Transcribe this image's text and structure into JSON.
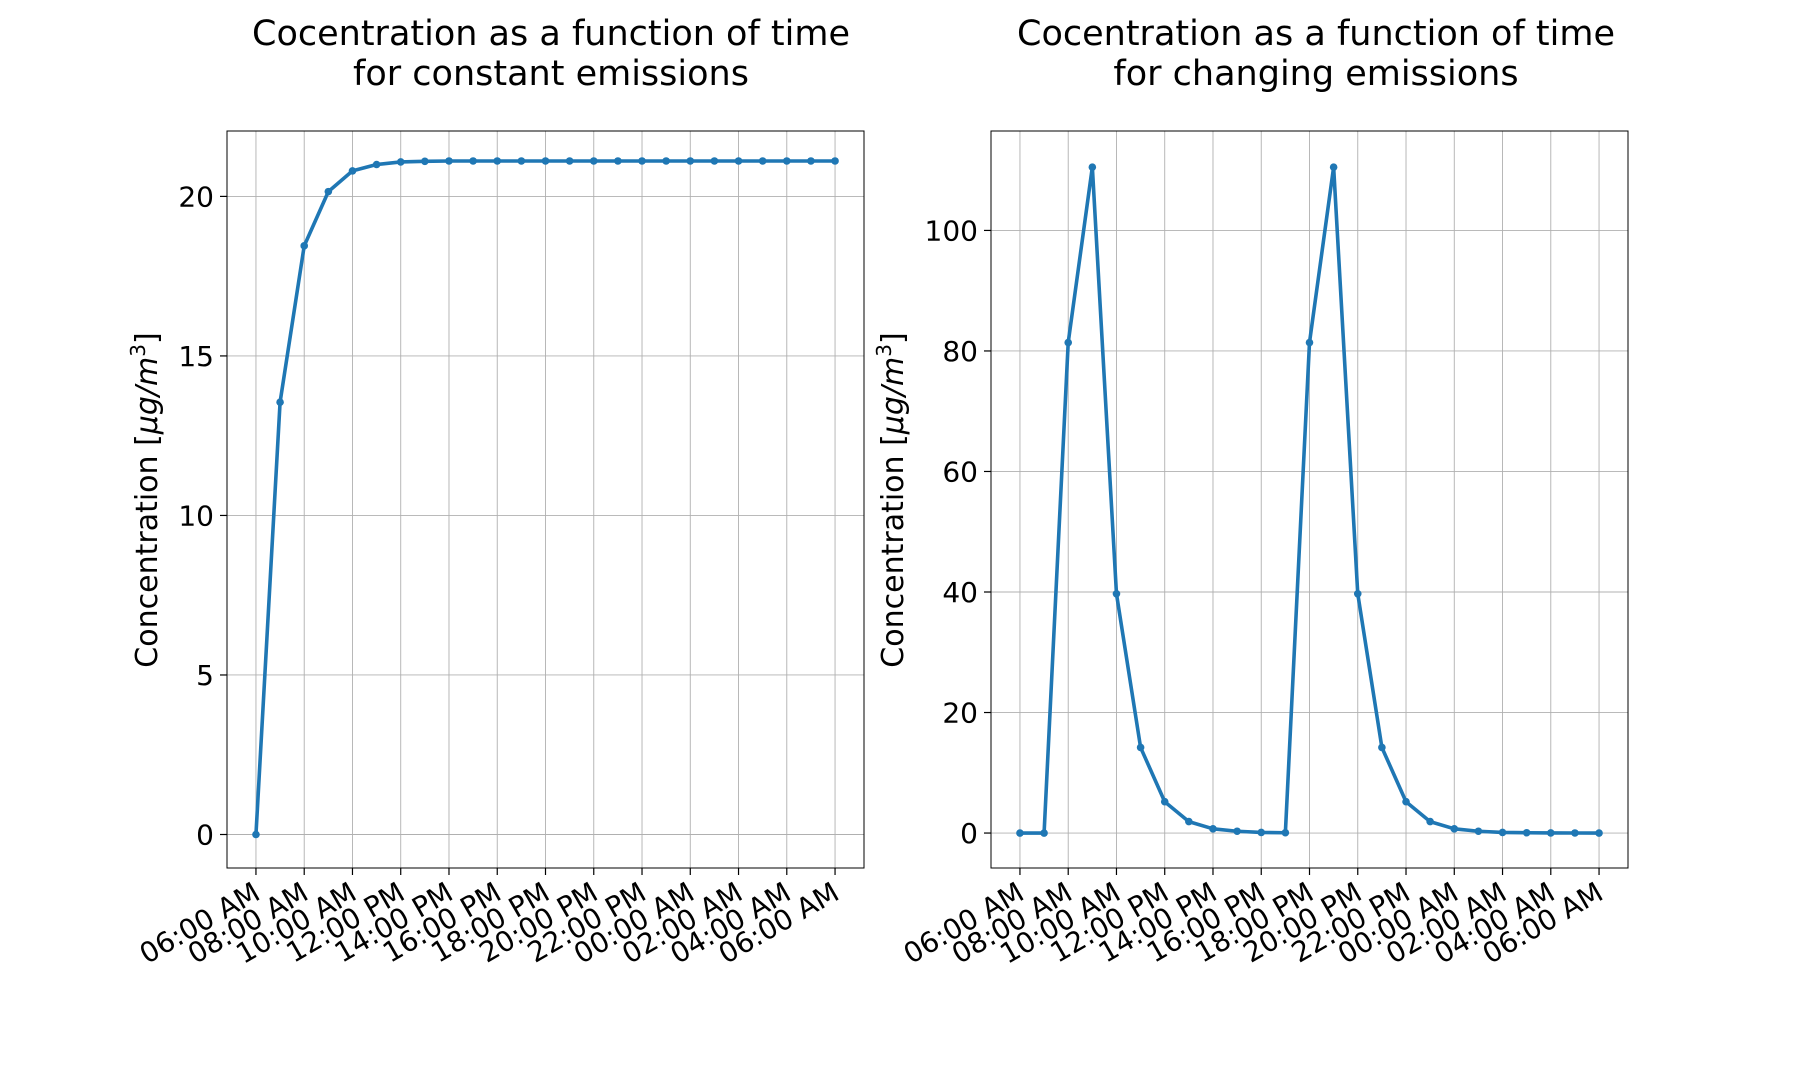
{
  "chart_data": [
    {
      "type": "line",
      "title_line1": "Cocentration as a function of time",
      "title_line2": "for constant emissions",
      "ylabel_prefix": "Concentration [",
      "ylabel_math": "μg/m",
      "ylabel_sup": "3",
      "ylabel_suffix": "]",
      "ylim": [
        -1.05,
        22.05
      ],
      "yticks": [
        0,
        5,
        10,
        15,
        20
      ],
      "ytick_labels": [
        "0",
        "5",
        "10",
        "15",
        "20"
      ],
      "xlim": [
        -1.2,
        25.2
      ],
      "xticks": [
        0,
        2,
        4,
        6,
        8,
        10,
        12,
        14,
        16,
        18,
        20,
        22,
        24
      ],
      "xtick_labels": [
        "06:00 AM",
        "08:00 AM",
        "10:00 AM",
        "12:00 PM",
        "14:00 PM",
        "16:00 PM",
        "18:00 PM",
        "20:00 PM",
        "22:00 PM",
        "00:00 AM",
        "02:00 AM",
        "04:00 AM",
        "06:00 AM"
      ],
      "grid": true,
      "color": "#1f77b4",
      "x": [
        0,
        1,
        2,
        3,
        4,
        5,
        6,
        7,
        8,
        9,
        10,
        11,
        12,
        13,
        14,
        15,
        16,
        17,
        18,
        19,
        20,
        21,
        22,
        23,
        24
      ],
      "values": [
        0,
        13.55,
        18.45,
        20.15,
        20.8,
        21.0,
        21.08,
        21.1,
        21.11,
        21.11,
        21.11,
        21.11,
        21.11,
        21.11,
        21.11,
        21.11,
        21.11,
        21.11,
        21.11,
        21.11,
        21.11,
        21.11,
        21.11,
        21.11,
        21.11
      ]
    },
    {
      "type": "line",
      "title_line1": "Cocentration as a function of time",
      "title_line2": "for changing emissions",
      "ylabel_prefix": "Concentration [",
      "ylabel_math": "μg/m",
      "ylabel_sup": "3",
      "ylabel_suffix": "]",
      "ylim": [
        -5.8,
        116.5
      ],
      "yticks": [
        0,
        20,
        40,
        60,
        80,
        100
      ],
      "ytick_labels": [
        "0",
        "20",
        "40",
        "60",
        "80",
        "100"
      ],
      "xlim": [
        -1.2,
        25.2
      ],
      "xticks": [
        0,
        2,
        4,
        6,
        8,
        10,
        12,
        14,
        16,
        18,
        20,
        22,
        24
      ],
      "xtick_labels": [
        "06:00 AM",
        "08:00 AM",
        "10:00 AM",
        "12:00 PM",
        "14:00 PM",
        "16:00 PM",
        "18:00 PM",
        "20:00 PM",
        "22:00 PM",
        "00:00 AM",
        "02:00 AM",
        "04:00 AM",
        "06:00 AM"
      ],
      "grid": true,
      "color": "#1f77b4",
      "x": [
        0,
        1,
        2,
        3,
        4,
        5,
        6,
        7,
        8,
        9,
        10,
        11,
        12,
        13,
        14,
        15,
        16,
        17,
        18,
        19,
        20,
        21,
        22,
        23,
        24
      ],
      "values": [
        0,
        0,
        81.4,
        110.5,
        39.7,
        14.2,
        5.2,
        1.9,
        0.7,
        0.3,
        0.1,
        0.05,
        81.4,
        110.5,
        39.7,
        14.2,
        5.2,
        1.9,
        0.7,
        0.3,
        0.1,
        0.05,
        0.02,
        0.01,
        0
      ]
    }
  ]
}
